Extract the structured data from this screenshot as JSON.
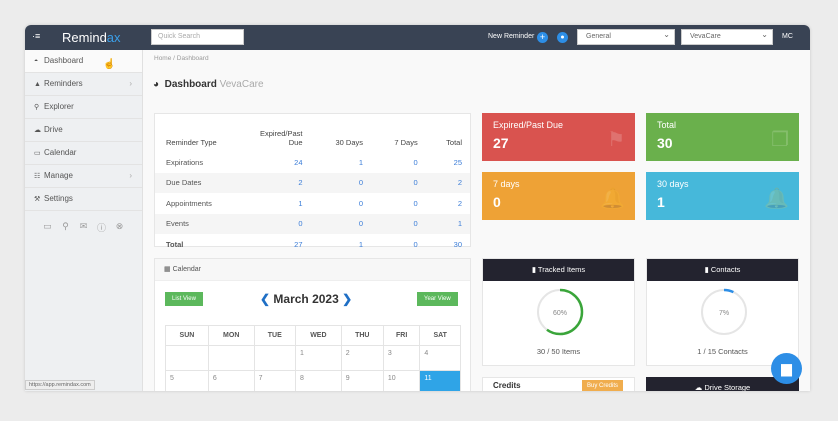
{
  "topbar": {
    "logo_main": "Remind",
    "logo_accent": "ax",
    "search_placeholder": "Quick Search",
    "new_reminder": "New Reminder",
    "category_select": "General",
    "org_select": "VevaCare",
    "user_initials": "MC"
  },
  "sidebar": {
    "items": [
      {
        "label": "Dashboard",
        "icon": "dashboard-icon"
      },
      {
        "label": "Reminders",
        "icon": "bell-icon"
      },
      {
        "label": "Explorer",
        "icon": "search-icon"
      },
      {
        "label": "Drive",
        "icon": "cloud-icon"
      },
      {
        "label": "Calendar",
        "icon": "calendar-icon"
      },
      {
        "label": "Manage",
        "icon": "sliders-icon"
      },
      {
        "label": "Settings",
        "icon": "wrench-icon"
      }
    ]
  },
  "breadcrumb": {
    "home": "Home",
    "current": "Dashboard"
  },
  "page": {
    "title": "Dashboard",
    "subtitle": "VevaCare"
  },
  "summary_table": {
    "headers": [
      "Reminder Type",
      "Expired/Past Due",
      "30 Days",
      "7 Days",
      "Total"
    ],
    "rows": [
      [
        "Expirations",
        "24",
        "1",
        "0",
        "25"
      ],
      [
        "Due Dates",
        "2",
        "0",
        "0",
        "2"
      ],
      [
        "Appointments",
        "1",
        "0",
        "0",
        "2"
      ],
      [
        "Events",
        "0",
        "0",
        "0",
        "1"
      ],
      [
        "Total",
        "27",
        "1",
        "0",
        "30"
      ]
    ]
  },
  "tiles": [
    {
      "label": "Expired/Past Due",
      "value": "27",
      "color": "#d9534f"
    },
    {
      "label": "Total",
      "value": "30",
      "color": "#6ab04c"
    },
    {
      "label": "7 days",
      "value": "0",
      "color": "#eea236"
    },
    {
      "label": "30 days",
      "value": "1",
      "color": "#46b8da"
    }
  ],
  "calendar": {
    "panel_title": "Calendar",
    "list_view": "List View",
    "year_view": "Year View",
    "month": "March 2023",
    "days": [
      "SUN",
      "MON",
      "TUE",
      "WED",
      "THU",
      "FRI",
      "SAT"
    ],
    "week1": [
      "",
      "",
      "",
      "1",
      "2",
      "3",
      "4"
    ],
    "week2": [
      "5",
      "6",
      "7",
      "8",
      "9",
      "10",
      "11"
    ]
  },
  "tracked": {
    "title": "Tracked Items",
    "percent": 60,
    "percent_label": "60%",
    "caption": "30 / 50 Items"
  },
  "contacts": {
    "title": "Contacts",
    "percent": 7,
    "percent_label": "7%",
    "caption": "1 / 15 Contacts"
  },
  "credits": {
    "title": "Credits",
    "button": "Buy Credits"
  },
  "drive_storage": {
    "title": "Drive Storage"
  },
  "status_url": "https://app.remindax.com"
}
